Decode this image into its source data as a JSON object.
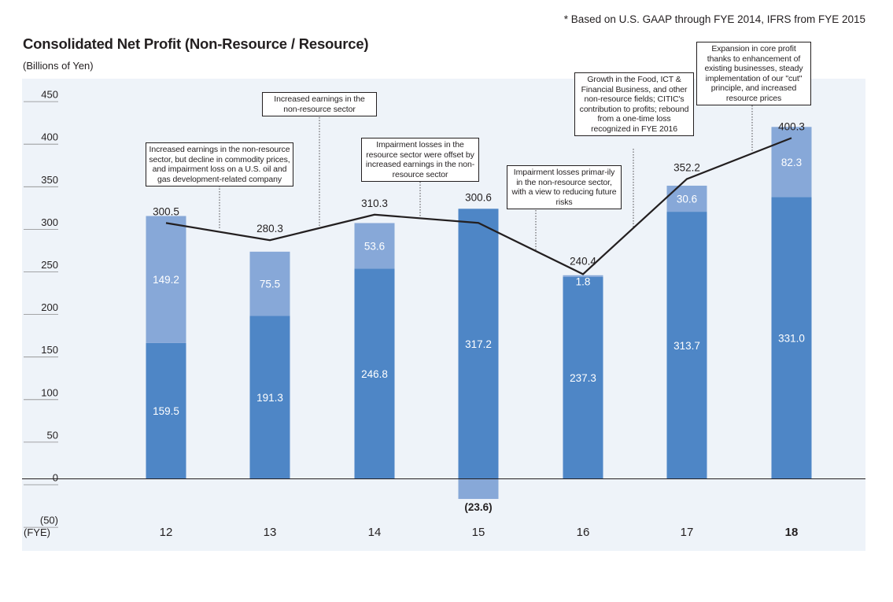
{
  "footnote": "* Based on U.S. GAAP through FYE 2014, IFRS from FYE 2015",
  "colors": {
    "non_resource": "#4e86c6",
    "resource": "#87a8d8",
    "background": "#eef3f9",
    "line": "#231f20"
  },
  "chart_data": {
    "type": "bar",
    "stacked": true,
    "title": "Consolidated Net Profit (Non-Resource / Resource)",
    "ylabel": "(Billions of Yen)",
    "xlabel": "(FYE)",
    "ylim": [
      -50,
      450
    ],
    "yticks": [
      "450",
      "400",
      "350",
      "300",
      "250",
      "200",
      "150",
      "100",
      "50",
      "0",
      "(50)"
    ],
    "ytick_values": [
      450,
      400,
      350,
      300,
      250,
      200,
      150,
      100,
      50,
      0,
      -50
    ],
    "categories": [
      "12",
      "13",
      "14",
      "15",
      "16",
      "17",
      "18"
    ],
    "series": [
      {
        "values": [
          159.5,
          191.3,
          246.8,
          317.2,
          237.3,
          313.7,
          331.0
        ],
        "labels": [
          "159.5",
          "191.3",
          "246.8",
          "317.2",
          "237.3",
          "313.7",
          "331.0"
        ]
      },
      {
        "values": [
          149.2,
          75.5,
          53.6,
          -23.6,
          1.8,
          30.6,
          82.3
        ],
        "labels": [
          "149.2",
          "75.5",
          "53.6",
          "(23.6)",
          "1.8",
          "30.6",
          "82.3"
        ]
      }
    ],
    "line": {
      "values": [
        300.5,
        280.3,
        310.3,
        300.6,
        240.4,
        352.2,
        400.3
      ],
      "labels": [
        "300.5",
        "280.3",
        "310.3",
        "300.6",
        "240.4",
        "352.2",
        "400.3"
      ]
    },
    "annotations": [
      "Increased earnings in the non-resource sector, but decline in commodity prices, and impairment loss on a U.S. oil and gas development-related company",
      "Increased earnings in the non-resource sector",
      "Impairment losses in the resource sector were offset by increased earnings in the non-resource sector",
      "Impairment losses primar-ily in the non-resource sector, with a view to reducing future risks",
      "Growth in the Food, ICT & Financial Business, and other non-resource fields; CITIC's contribution to profits; rebound from a one-time loss recognized in FYE 2016",
      "Expansion in core profit thanks to enhancement of existing businesses, steady implementation of our \"cut\" principle, and increased resource prices"
    ]
  }
}
